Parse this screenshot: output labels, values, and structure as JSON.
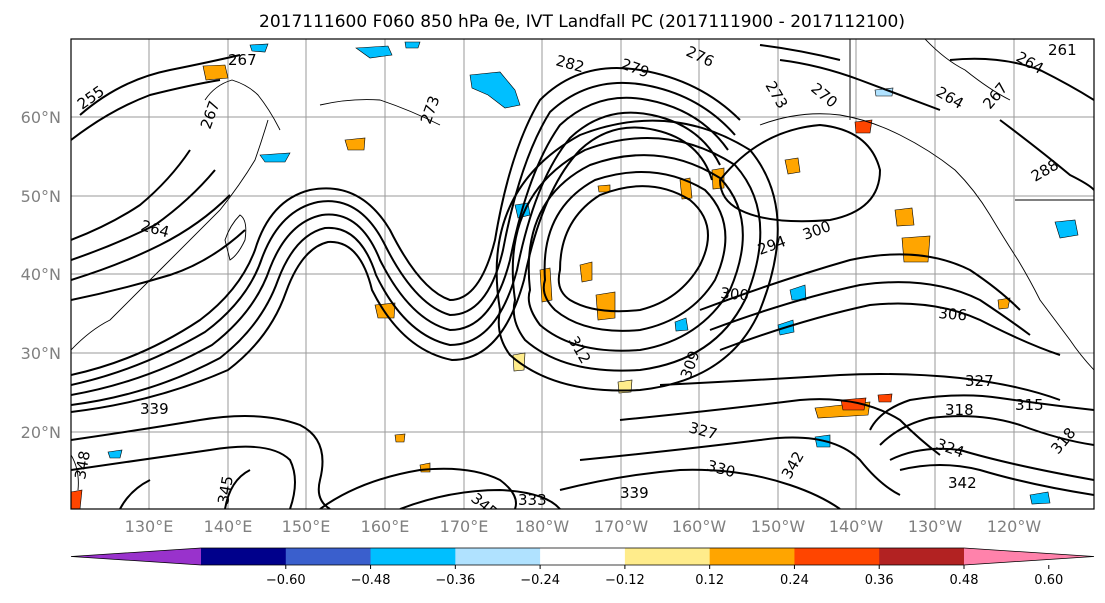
{
  "title": "2017111600 F060 850 hPa θe, IVT Landfall PC (2017111900 - 2017112100)",
  "latitude_labels": [
    "60°N",
    "50°N",
    "40°N",
    "30°N",
    "20°N"
  ],
  "longitude_labels": [
    "130°E",
    "140°E",
    "150°E",
    "160°E",
    "170°E",
    "180°W",
    "170°W",
    "160°W",
    "150°W",
    "140°W",
    "130°W",
    "120°W"
  ],
  "contour_labels": [
    "267",
    "255",
    "264",
    "267",
    "273",
    "282",
    "279",
    "276",
    "273",
    "270",
    "264",
    "261",
    "264",
    "267",
    "288",
    "294",
    "300",
    "300",
    "306",
    "309",
    "312",
    "327",
    "318",
    "315",
    "324",
    "318",
    "342",
    "339",
    "339",
    "342",
    "333",
    "330",
    "327",
    "345",
    "345",
    "348",
    "342"
  ],
  "colorbar": {
    "ticks": [
      "−0.60",
      "−0.48",
      "−0.36",
      "−0.24",
      "−0.12",
      "0.12",
      "0.24",
      "0.36",
      "0.48",
      "0.60"
    ],
    "colors": [
      "#9932cc",
      "#00008b",
      "#3a5fcd",
      "#00bfff",
      "#b0e2ff",
      "#ffffff",
      "#ffec8b",
      "#ffa500",
      "#ff4500",
      "#b22222",
      "#ff82ab"
    ]
  }
}
